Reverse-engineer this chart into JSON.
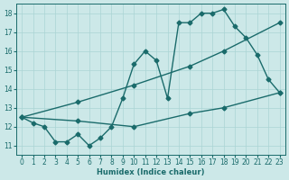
{
  "xlabel": "Humidex (Indice chaleur)",
  "ylabel": "",
  "xlim": [
    -0.5,
    23.5
  ],
  "ylim": [
    10.5,
    18.5
  ],
  "xticks": [
    0,
    1,
    2,
    3,
    4,
    5,
    6,
    7,
    8,
    9,
    10,
    11,
    12,
    13,
    14,
    15,
    16,
    17,
    18,
    19,
    20,
    21,
    22,
    23
  ],
  "yticks": [
    11,
    12,
    13,
    14,
    15,
    16,
    17,
    18
  ],
  "bg_color": "#cce8e8",
  "grid_color": "#aad4d4",
  "line_color": "#1a6b6b",
  "line1_x": [
    0,
    1,
    2,
    3,
    4,
    5,
    6,
    7,
    8,
    9,
    10,
    11,
    12,
    13,
    14,
    15,
    16,
    17,
    18,
    19,
    20,
    21,
    22,
    23
  ],
  "line1_y": [
    12.5,
    12.2,
    12.0,
    11.2,
    11.2,
    11.6,
    11.0,
    11.4,
    12.0,
    13.5,
    15.3,
    16.0,
    15.5,
    13.5,
    17.5,
    17.5,
    18.0,
    18.0,
    18.2,
    17.3,
    16.7,
    15.8,
    14.5,
    13.8
  ],
  "line2_x": [
    0,
    5,
    10,
    15,
    18,
    23
  ],
  "line2_y": [
    12.5,
    13.3,
    14.2,
    15.2,
    16.0,
    17.5
  ],
  "line3_x": [
    0,
    5,
    10,
    15,
    18,
    23
  ],
  "line3_y": [
    12.5,
    12.3,
    12.0,
    12.7,
    13.0,
    13.8
  ],
  "marker": "D",
  "markersize": 2.5,
  "linewidth": 1.0
}
